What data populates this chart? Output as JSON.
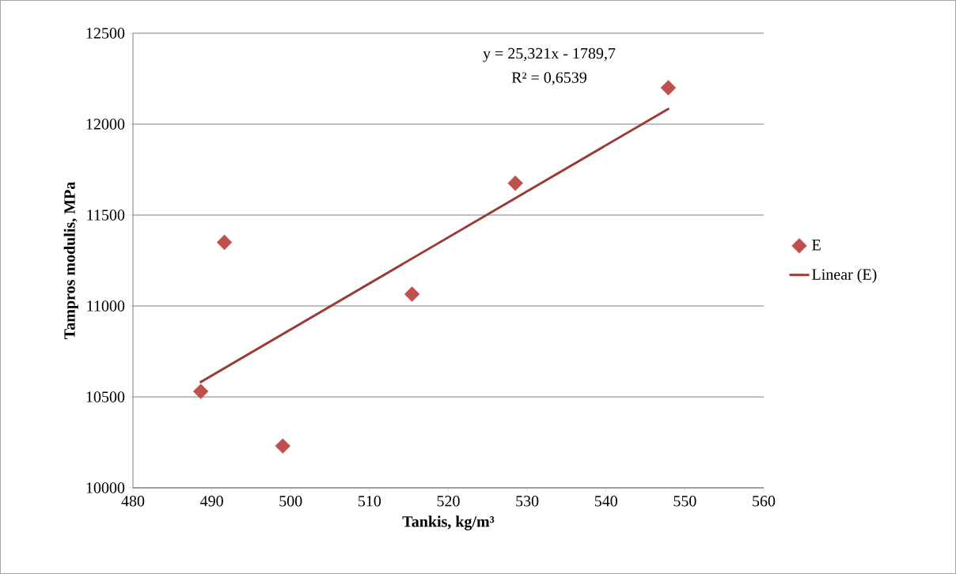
{
  "chart_data": {
    "type": "scatter",
    "xlabel": "Tankis, kg/m³",
    "ylabel": "Tampros modulis, MPa",
    "xlim": [
      480,
      560
    ],
    "xticks": [
      480,
      490,
      500,
      510,
      520,
      530,
      540,
      550,
      560
    ],
    "ylim": [
      10000,
      12500
    ],
    "yticks": [
      10000,
      10500,
      11000,
      11500,
      12000,
      12500
    ],
    "grid": "y",
    "legend": "right",
    "series": [
      {
        "name": "E",
        "marker": "diamond",
        "color": "#c0504d",
        "x": [
          488.6,
          491.6,
          499.0,
          515.4,
          528.5,
          547.9
        ],
        "values": [
          10530,
          11350,
          10230,
          11065,
          11675,
          12200
        ]
      },
      {
        "name": "Linear (E)",
        "type": "line",
        "marker": "none",
        "color": "#9b3b37",
        "x": [
          488.6,
          547.9
        ],
        "values": [
          10582,
          12084
        ]
      }
    ],
    "annotations": [
      "y = 25,321x - 1789,7",
      "R² = 0,6539"
    ]
  }
}
